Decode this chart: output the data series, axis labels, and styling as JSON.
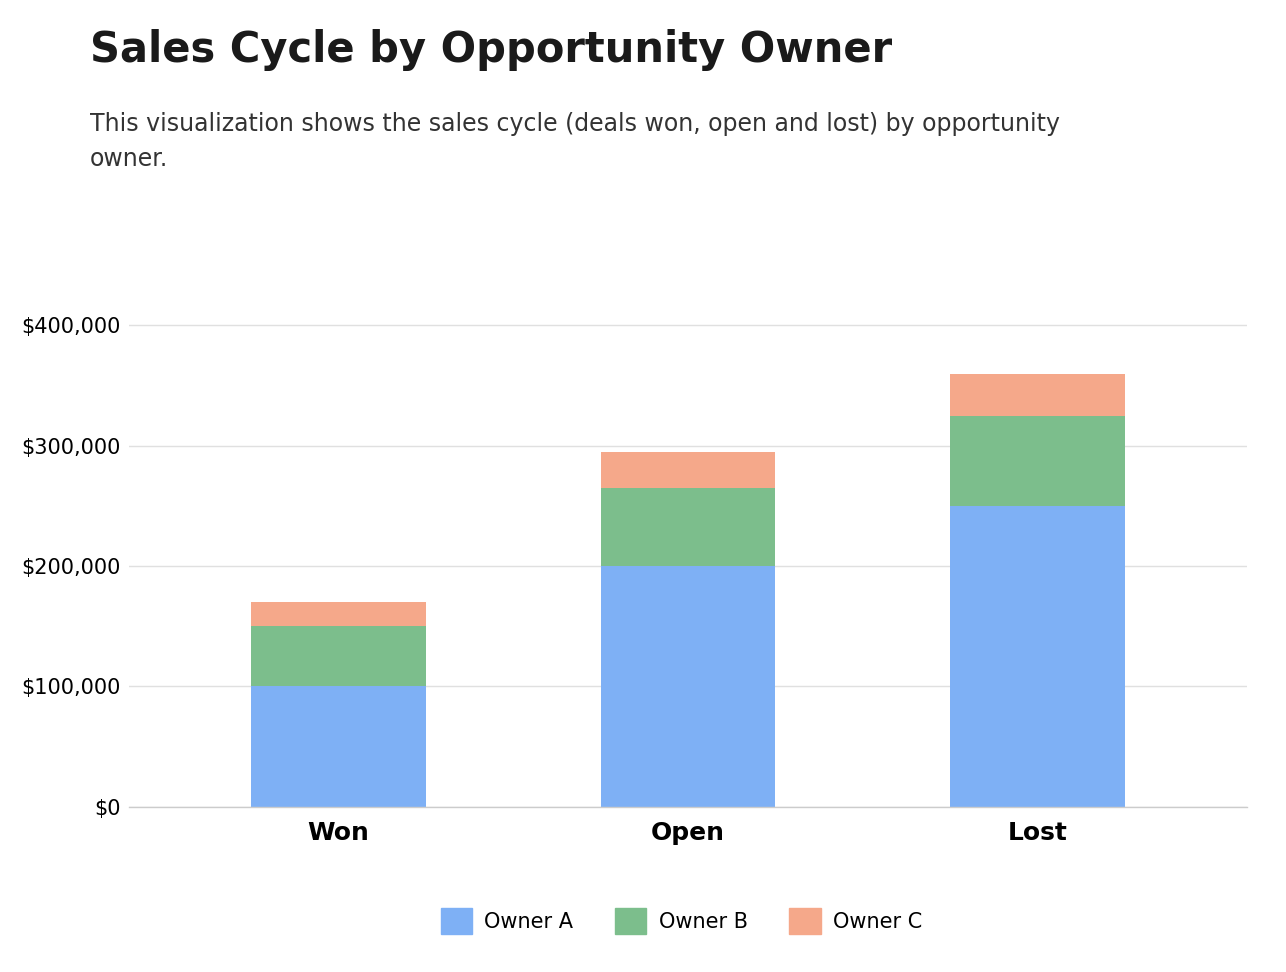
{
  "title": "Sales Cycle by Opportunity Owner",
  "subtitle": "This visualization shows the sales cycle (deals won, open and lost) by opportunity\nowner.",
  "categories": [
    "Won",
    "Open",
    "Lost"
  ],
  "series": [
    {
      "name": "Owner A",
      "values": [
        100000,
        200000,
        250000
      ],
      "color": "#7EB0F5"
    },
    {
      "name": "Owner B",
      "values": [
        50000,
        65000,
        75000
      ],
      "color": "#7CBE8C"
    },
    {
      "name": "Owner C",
      "values": [
        20000,
        30000,
        35000
      ],
      "color": "#F5A88A"
    }
  ],
  "ylim": [
    0,
    420000
  ],
  "yticks": [
    0,
    100000,
    200000,
    300000,
    400000
  ],
  "background_color": "#ffffff",
  "grid_color": "#e0e0e0",
  "title_fontsize": 30,
  "subtitle_fontsize": 17,
  "tick_fontsize": 15,
  "xlabel_fontsize": 18,
  "legend_fontsize": 15,
  "bar_width": 0.5
}
